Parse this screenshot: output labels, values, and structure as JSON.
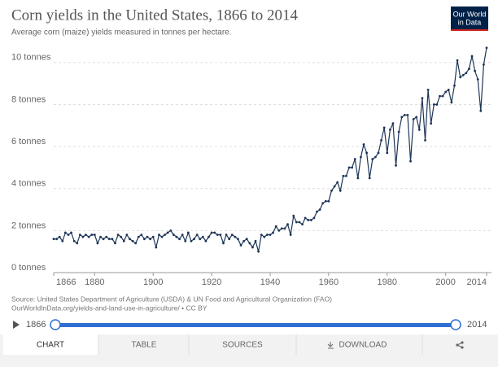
{
  "chart_data": {
    "type": "line",
    "title": "Corn yields in the United States, 1866 to 2014",
    "subtitle": "Average corn (maize) yields measured in tonnes per hectare.",
    "source": "Source: United States Department of Agriculture (USDA) & UN Food and Agricultural Organization (FAO)",
    "url": "OurWorldInData.org/yields-and-land-use-in-agriculture/ • CC BY",
    "color": "#1d3557",
    "grid": true,
    "xlim": [
      1866,
      2014
    ],
    "xticks": [
      1866,
      1880,
      1900,
      1920,
      1940,
      1960,
      1980,
      2000,
      2014
    ],
    "ylim": [
      0,
      11
    ],
    "yticks": [
      {
        "value": 0,
        "label": "0 tonnes"
      },
      {
        "value": 2,
        "label": "2 tonnes"
      },
      {
        "value": 4,
        "label": "4 tonnes"
      },
      {
        "value": 6,
        "label": "6 tonnes"
      },
      {
        "value": 8,
        "label": "8 tonnes"
      },
      {
        "value": 10,
        "label": "10 tonnes"
      }
    ],
    "x": [
      1866,
      1867,
      1868,
      1869,
      1870,
      1871,
      1872,
      1873,
      1874,
      1875,
      1876,
      1877,
      1878,
      1879,
      1880,
      1881,
      1882,
      1883,
      1884,
      1885,
      1886,
      1887,
      1888,
      1889,
      1890,
      1891,
      1892,
      1893,
      1894,
      1895,
      1896,
      1897,
      1898,
      1899,
      1900,
      1901,
      1902,
      1903,
      1904,
      1905,
      1906,
      1907,
      1908,
      1909,
      1910,
      1911,
      1912,
      1913,
      1914,
      1915,
      1916,
      1917,
      1918,
      1919,
      1920,
      1921,
      1922,
      1923,
      1924,
      1925,
      1926,
      1927,
      1928,
      1929,
      1930,
      1931,
      1932,
      1933,
      1934,
      1935,
      1936,
      1937,
      1938,
      1939,
      1940,
      1941,
      1942,
      1943,
      1944,
      1945,
      1946,
      1947,
      1948,
      1949,
      1950,
      1951,
      1952,
      1953,
      1954,
      1955,
      1956,
      1957,
      1958,
      1959,
      1960,
      1961,
      1962,
      1963,
      1964,
      1965,
      1966,
      1967,
      1968,
      1969,
      1970,
      1971,
      1972,
      1973,
      1974,
      1975,
      1976,
      1977,
      1978,
      1979,
      1980,
      1981,
      1982,
      1983,
      1984,
      1985,
      1986,
      1987,
      1988,
      1989,
      1990,
      1991,
      1992,
      1993,
      1994,
      1995,
      1996,
      1997,
      1998,
      1999,
      2000,
      2001,
      2002,
      2003,
      2004,
      2005,
      2006,
      2007,
      2008,
      2009,
      2010,
      2011,
      2012,
      2013,
      2014
    ],
    "values": [
      1.6,
      1.6,
      1.7,
      1.5,
      1.9,
      1.8,
      1.9,
      1.5,
      1.4,
      1.8,
      1.7,
      1.8,
      1.7,
      1.8,
      1.8,
      1.4,
      1.7,
      1.6,
      1.7,
      1.6,
      1.6,
      1.4,
      1.8,
      1.7,
      1.5,
      1.8,
      1.6,
      1.5,
      1.4,
      1.7,
      1.8,
      1.6,
      1.7,
      1.6,
      1.7,
      1.2,
      1.8,
      1.7,
      1.8,
      1.9,
      2.0,
      1.8,
      1.7,
      1.6,
      1.8,
      1.5,
      1.9,
      1.5,
      1.6,
      1.8,
      1.6,
      1.7,
      1.5,
      1.7,
      1.9,
      1.9,
      1.8,
      1.8,
      1.4,
      1.8,
      1.6,
      1.8,
      1.7,
      1.6,
      1.3,
      1.5,
      1.6,
      1.4,
      1.2,
      1.5,
      1.0,
      1.8,
      1.7,
      1.8,
      1.8,
      1.9,
      2.2,
      2.0,
      2.1,
      2.1,
      2.3,
      1.8,
      2.7,
      2.4,
      2.4,
      2.3,
      2.6,
      2.5,
      2.5,
      2.6,
      2.9,
      3.0,
      3.3,
      3.4,
      3.4,
      3.9,
      4.1,
      4.3,
      3.9,
      4.6,
      4.6,
      5.0,
      5.0,
      5.4,
      4.5,
      5.5,
      6.1,
      5.7,
      4.5,
      5.4,
      5.5,
      5.7,
      6.3,
      6.9,
      5.7,
      6.8,
      7.1,
      5.1,
      6.7,
      7.4,
      7.5,
      7.5,
      5.3,
      7.3,
      7.4,
      6.8,
      8.3,
      6.3,
      8.7,
      7.1,
      8.0,
      8.0,
      8.4,
      8.4,
      8.6,
      8.7,
      8.1,
      8.9,
      10.1,
      9.3,
      9.4,
      9.5,
      9.7,
      10.3,
      9.6,
      9.2,
      7.7,
      9.9,
      10.7
    ]
  },
  "ui": {
    "logo": [
      "Our World",
      "in Data"
    ],
    "slider": {
      "start": "1866",
      "end": "2014"
    },
    "tabs": [
      "CHART",
      "TABLE",
      "SOURCES",
      "DOWNLOAD"
    ]
  }
}
